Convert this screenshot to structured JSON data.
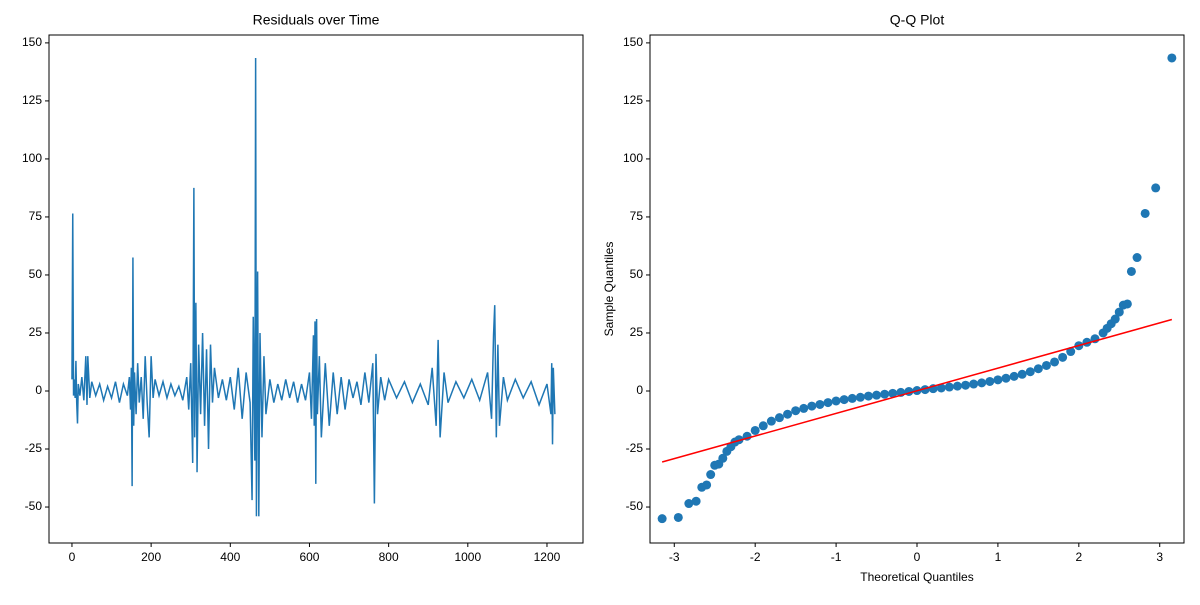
{
  "chart_data": [
    {
      "type": "line",
      "title": "Residuals over Time",
      "xlim": [
        -58,
        1291
      ],
      "ylim": [
        -65.5,
        153.4
      ],
      "xticks": [
        0,
        200,
        400,
        600,
        800,
        1000,
        1200
      ],
      "yticks": [
        -50,
        -25,
        0,
        25,
        50,
        75,
        100,
        125,
        150
      ],
      "series": [
        {
          "color": "#1f77b4",
          "x": [
            0,
            2,
            4,
            6,
            8,
            10,
            12,
            14,
            16,
            20,
            25,
            30,
            35,
            38,
            40,
            45,
            50,
            60,
            70,
            80,
            90,
            100,
            110,
            120,
            130,
            140,
            145,
            148,
            150,
            152,
            154,
            156,
            158,
            162,
            166,
            170,
            175,
            180,
            185,
            190,
            195,
            200,
            205,
            210,
            220,
            230,
            240,
            250,
            260,
            270,
            280,
            290,
            295,
            300,
            305,
            308,
            310,
            313,
            316,
            320,
            325,
            330,
            335,
            340,
            345,
            350,
            355,
            360,
            370,
            380,
            390,
            400,
            410,
            420,
            430,
            440,
            450,
            455,
            458,
            462,
            464,
            466,
            469,
            472,
            475,
            480,
            485,
            490,
            500,
            510,
            520,
            530,
            540,
            550,
            560,
            570,
            580,
            590,
            600,
            605,
            610,
            612,
            614,
            616,
            618,
            620,
            625,
            630,
            640,
            650,
            660,
            670,
            680,
            690,
            700,
            710,
            720,
            730,
            740,
            750,
            760,
            764,
            768,
            772,
            780,
            790,
            800,
            820,
            840,
            860,
            880,
            900,
            910,
            920,
            925,
            930,
            940,
            950,
            970,
            990,
            1010,
            1030,
            1050,
            1060,
            1065,
            1068,
            1072,
            1076,
            1080,
            1090,
            1100,
            1120,
            1140,
            1160,
            1180,
            1200,
            1210,
            1212,
            1214,
            1216,
            1220
          ],
          "values": [
            5,
            76.5,
            -2,
            5,
            -3,
            13,
            -5,
            -14,
            3,
            -2,
            6,
            -4,
            15,
            -6,
            15,
            -3,
            4,
            -2,
            3,
            -4,
            2,
            -3,
            4,
            -5,
            3,
            -2,
            6,
            -8,
            10,
            -41,
            57.5,
            -15,
            8,
            -10,
            12,
            -5,
            6,
            -12,
            15,
            -5,
            -20,
            15,
            -3,
            5,
            -2,
            4,
            -3,
            3,
            -2,
            2,
            -4,
            6,
            -8,
            12,
            -31,
            87.5,
            -20,
            38,
            -35,
            20,
            -10,
            25,
            -15,
            18,
            -25,
            20,
            -5,
            10,
            -3,
            5,
            -4,
            6,
            -8,
            10,
            -12,
            8,
            -5,
            -47,
            32,
            -30,
            143.5,
            -54,
            51.5,
            -54,
            25,
            -20,
            15,
            -10,
            5,
            -5,
            3,
            -4,
            5,
            -3,
            4,
            -5,
            3,
            -4,
            8,
            -12,
            24,
            -15,
            30,
            -40,
            31,
            -10,
            15,
            -20,
            12,
            -15,
            8,
            -10,
            6,
            -8,
            5,
            -3,
            4,
            -6,
            8,
            -5,
            12,
            -48.5,
            16,
            -10,
            6,
            -4,
            5,
            -3,
            4,
            -5,
            3,
            -6,
            10,
            -15,
            22,
            -20,
            8,
            -5,
            4,
            -3,
            5,
            -4,
            8,
            -12,
            24,
            37,
            -20,
            20,
            -15,
            6,
            -4,
            5,
            -3,
            4,
            -6,
            3,
            -10,
            12,
            -23,
            10,
            -10
          ]
        }
      ]
    },
    {
      "type": "scatter",
      "title": "Q-Q Plot",
      "xlabel": "Theoretical Quantiles",
      "ylabel": "Sample Quantiles",
      "xlim": [
        -3.3,
        3.3
      ],
      "ylim": [
        -65.5,
        153.4
      ],
      "xticks": [
        -3,
        -2,
        -1,
        0,
        1,
        2,
        3
      ],
      "yticks": [
        -50,
        -25,
        0,
        25,
        50,
        75,
        100,
        125,
        150
      ],
      "series": [
        {
          "color": "#1f77b4",
          "x": [
            -3.15,
            -2.95,
            -2.82,
            -2.73,
            -2.66,
            -2.6,
            -2.55,
            -2.5,
            -2.45,
            -2.4,
            -2.35,
            -2.3,
            -2.25,
            -2.2,
            -2.1,
            -2.0,
            -1.9,
            -1.8,
            -1.7,
            -1.6,
            -1.5,
            -1.4,
            -1.3,
            -1.2,
            -1.1,
            -1.0,
            -0.9,
            -0.8,
            -0.7,
            -0.6,
            -0.5,
            -0.4,
            -0.3,
            -0.2,
            -0.1,
            0,
            0.1,
            0.2,
            0.3,
            0.4,
            0.5,
            0.6,
            0.7,
            0.8,
            0.9,
            1.0,
            1.1,
            1.2,
            1.3,
            1.4,
            1.5,
            1.6,
            1.7,
            1.8,
            1.9,
            2.0,
            2.1,
            2.2,
            2.3,
            2.35,
            2.4,
            2.45,
            2.5,
            2.55,
            2.6,
            2.65,
            2.72,
            2.82,
            2.95,
            3.15
          ],
          "values": [
            -55,
            -54.5,
            -48.5,
            -47.5,
            -41.5,
            -40.5,
            -36,
            -32,
            -31.5,
            -29,
            -26,
            -24,
            -22,
            -21,
            -19.5,
            -17,
            -15,
            -13,
            -11.5,
            -10,
            -8.5,
            -7.5,
            -6.5,
            -5.8,
            -5,
            -4.3,
            -3.7,
            -3.2,
            -2.7,
            -2.2,
            -1.8,
            -1.4,
            -1.0,
            -0.6,
            -0.2,
            0.2,
            0.6,
            1.0,
            1.3,
            1.7,
            2.1,
            2.5,
            3.0,
            3.5,
            4.1,
            4.8,
            5.5,
            6.3,
            7.2,
            8.3,
            9.6,
            11,
            12.5,
            14.5,
            17,
            19.5,
            21,
            22.5,
            25,
            27,
            29,
            31,
            34,
            37,
            37.5,
            51.5,
            57.5,
            76.5,
            87.5,
            143.5
          ]
        },
        {
          "type": "line",
          "color": "red",
          "x": [
            -3.15,
            3.15
          ],
          "values": [
            -30.6,
            30.8
          ]
        }
      ]
    }
  ]
}
